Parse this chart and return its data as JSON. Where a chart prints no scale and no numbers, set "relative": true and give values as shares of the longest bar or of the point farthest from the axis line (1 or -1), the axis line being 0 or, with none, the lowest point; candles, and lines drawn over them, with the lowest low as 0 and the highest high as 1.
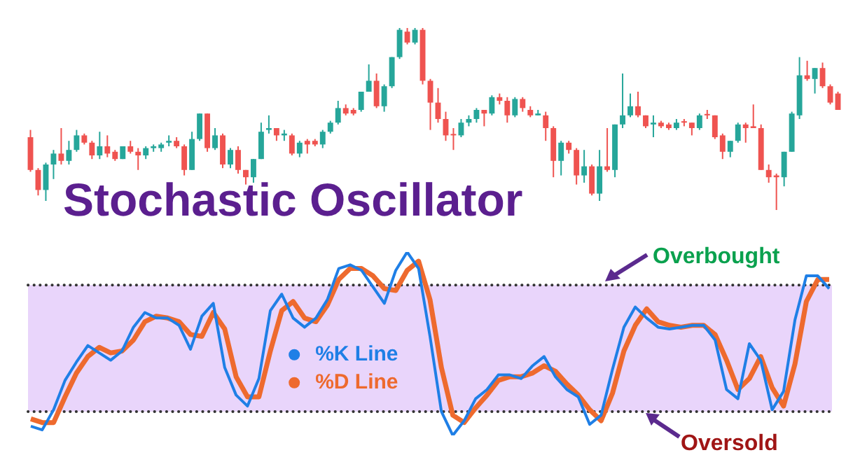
{
  "chart_data": [
    {
      "type": "candlestick",
      "title": "Stochastic Oscillator",
      "relative": true,
      "categories": [
        null,
        null,
        null,
        null,
        null,
        null,
        null,
        null,
        null,
        null,
        null,
        null,
        null,
        null,
        null,
        null,
        null,
        null,
        null,
        null,
        null,
        null,
        null,
        null,
        null,
        null,
        null,
        null,
        null,
        null,
        null,
        null,
        null,
        null,
        null,
        null,
        null,
        null,
        null,
        null,
        null,
        null,
        null,
        null,
        null,
        null,
        null,
        null,
        null,
        null,
        null,
        null,
        null,
        null,
        null,
        null,
        null,
        null,
        null,
        null,
        null,
        null,
        null,
        null,
        null,
        null,
        null,
        null,
        null,
        null,
        null,
        null,
        null,
        null,
        null,
        null,
        null,
        null,
        null,
        null,
        null,
        null,
        null,
        null,
        null,
        null,
        null,
        null,
        null,
        null,
        null,
        null,
        null,
        null,
        null,
        null,
        null,
        null,
        null,
        null,
        null,
        null,
        null,
        null,
        null,
        null
      ],
      "ohlc": [
        [
          0.4,
          0.44,
          0.21,
          0.22
        ],
        [
          0.22,
          0.23,
          0.08,
          0.11
        ],
        [
          0.11,
          0.26,
          0.05,
          0.25
        ],
        [
          0.25,
          0.33,
          0.17,
          0.31
        ],
        [
          0.31,
          0.45,
          0.25,
          0.27
        ],
        [
          0.27,
          0.38,
          0.25,
          0.33
        ],
        [
          0.33,
          0.44,
          0.32,
          0.41
        ],
        [
          0.41,
          0.42,
          0.36,
          0.37
        ],
        [
          0.37,
          0.38,
          0.28,
          0.3
        ],
        [
          0.3,
          0.43,
          0.28,
          0.35
        ],
        [
          0.35,
          0.41,
          0.29,
          0.31
        ],
        [
          0.32,
          0.33,
          0.27,
          0.28
        ],
        [
          0.28,
          0.35,
          0.28,
          0.35
        ],
        [
          0.35,
          0.38,
          0.31,
          0.32
        ],
        [
          0.32,
          0.34,
          0.22,
          0.3
        ],
        [
          0.3,
          0.35,
          0.28,
          0.34
        ],
        [
          0.34,
          0.36,
          0.32,
          0.35
        ],
        [
          0.34,
          0.37,
          0.32,
          0.36
        ],
        [
          0.37,
          0.41,
          0.35,
          0.38
        ],
        [
          0.38,
          0.4,
          0.34,
          0.35
        ],
        [
          0.35,
          0.36,
          0.19,
          0.22
        ],
        [
          0.22,
          0.43,
          0.22,
          0.39
        ],
        [
          0.39,
          0.53,
          0.38,
          0.53
        ],
        [
          0.53,
          0.53,
          0.32,
          0.34
        ],
        [
          0.34,
          0.45,
          0.33,
          0.41
        ],
        [
          0.41,
          0.42,
          0.23,
          0.25
        ],
        [
          0.25,
          0.34,
          0.23,
          0.33
        ],
        [
          0.33,
          0.35,
          0.2,
          0.22
        ],
        [
          0.22,
          0.22,
          0.14,
          0.18
        ],
        [
          0.18,
          0.28,
          0.15,
          0.28
        ],
        [
          0.28,
          0.48,
          0.28,
          0.43
        ],
        [
          0.44,
          0.52,
          0.42,
          0.45
        ],
        [
          0.45,
          0.45,
          0.38,
          0.41
        ],
        [
          0.41,
          0.44,
          0.38,
          0.42
        ],
        [
          0.41,
          0.42,
          0.3,
          0.31
        ],
        [
          0.31,
          0.38,
          0.29,
          0.37
        ],
        [
          0.38,
          0.39,
          0.31,
          0.36
        ],
        [
          0.38,
          0.39,
          0.35,
          0.36
        ],
        [
          0.36,
          0.44,
          0.34,
          0.43
        ],
        [
          0.43,
          0.49,
          0.42,
          0.48
        ],
        [
          0.48,
          0.6,
          0.47,
          0.56
        ],
        [
          0.56,
          0.58,
          0.52,
          0.53
        ],
        [
          0.55,
          0.56,
          0.52,
          0.53
        ],
        [
          0.55,
          0.65,
          0.54,
          0.65
        ],
        [
          0.65,
          0.8,
          0.65,
          0.71
        ],
        [
          0.71,
          0.75,
          0.56,
          0.57
        ],
        [
          0.57,
          0.69,
          0.54,
          0.68
        ],
        [
          0.68,
          0.84,
          0.67,
          0.84
        ],
        [
          0.84,
          1.0,
          0.83,
          0.99
        ],
        [
          0.98,
          1.0,
          0.91,
          0.92
        ],
        [
          0.92,
          1.0,
          0.91,
          0.99
        ],
        [
          0.99,
          1.0,
          0.69,
          0.71
        ],
        [
          0.71,
          0.72,
          0.44,
          0.59
        ],
        [
          0.59,
          0.67,
          0.48,
          0.5
        ],
        [
          0.5,
          0.54,
          0.38,
          0.41
        ],
        [
          0.41,
          0.45,
          0.33,
          0.41
        ],
        [
          0.41,
          0.5,
          0.4,
          0.48
        ],
        [
          0.48,
          0.52,
          0.46,
          0.5
        ],
        [
          0.5,
          0.56,
          0.48,
          0.55
        ],
        [
          0.55,
          0.55,
          0.46,
          0.53
        ],
        [
          0.53,
          0.63,
          0.52,
          0.62
        ],
        [
          0.62,
          0.64,
          0.58,
          0.6
        ],
        [
          0.6,
          0.62,
          0.48,
          0.52
        ],
        [
          0.52,
          0.62,
          0.51,
          0.61
        ],
        [
          0.61,
          0.62,
          0.54,
          0.56
        ],
        [
          0.55,
          0.57,
          0.51,
          0.52
        ],
        [
          0.52,
          0.55,
          0.52,
          0.53
        ],
        [
          0.52,
          0.54,
          0.38,
          0.45
        ],
        [
          0.45,
          0.46,
          0.18,
          0.27
        ],
        [
          0.27,
          0.38,
          0.19,
          0.37
        ],
        [
          0.37,
          0.38,
          0.31,
          0.33
        ],
        [
          0.33,
          0.34,
          0.14,
          0.19
        ],
        [
          0.19,
          0.33,
          0.15,
          0.24
        ],
        [
          0.24,
          0.25,
          0.08,
          0.09
        ],
        [
          0.09,
          0.33,
          0.05,
          0.24
        ],
        [
          0.24,
          0.45,
          0.21,
          0.22
        ],
        [
          0.22,
          0.47,
          0.18,
          0.47
        ],
        [
          0.47,
          0.75,
          0.45,
          0.52
        ],
        [
          0.52,
          0.64,
          0.51,
          0.57
        ],
        [
          0.57,
          0.65,
          0.51,
          0.52
        ],
        [
          0.52,
          0.52,
          0.45,
          0.46
        ],
        [
          0.47,
          0.52,
          0.4,
          0.48
        ],
        [
          0.48,
          0.49,
          0.45,
          0.46
        ],
        [
          0.47,
          0.48,
          0.44,
          0.45
        ],
        [
          0.45,
          0.5,
          0.44,
          0.48
        ],
        [
          0.48,
          0.5,
          0.46,
          0.48
        ],
        [
          0.48,
          0.48,
          0.41,
          0.45
        ],
        [
          0.45,
          0.53,
          0.44,
          0.52
        ],
        [
          0.52,
          0.55,
          0.5,
          0.52
        ],
        [
          0.52,
          0.52,
          0.39,
          0.4
        ],
        [
          0.41,
          0.42,
          0.28,
          0.32
        ],
        [
          0.32,
          0.38,
          0.29,
          0.38
        ],
        [
          0.38,
          0.48,
          0.37,
          0.47
        ],
        [
          0.47,
          0.48,
          0.37,
          0.45
        ],
        [
          0.46,
          0.58,
          0.45,
          0.45
        ],
        [
          0.45,
          0.47,
          0.22,
          0.22
        ],
        [
          0.22,
          0.25,
          0.15,
          0.18
        ],
        [
          0.19,
          0.2,
          0.0,
          0.18
        ],
        [
          0.18,
          0.32,
          0.13,
          0.32
        ],
        [
          0.32,
          0.54,
          0.32,
          0.53
        ],
        [
          0.52,
          0.84,
          0.5,
          0.74
        ],
        [
          0.74,
          0.82,
          0.71,
          0.72
        ],
        [
          0.72,
          0.78,
          0.64,
          0.78
        ],
        [
          0.78,
          0.81,
          0.67,
          0.68
        ],
        [
          0.68,
          0.69,
          0.58,
          0.59
        ],
        [
          0.64,
          0.65,
          0.55,
          0.55
        ]
      ],
      "colors": [
        "#ef5350",
        "#ef5350",
        "#26a69a",
        "#26a69a",
        "#ef5350",
        "#26a69a",
        "#26a69a",
        "#ef5350",
        "#ef5350",
        "#26a69a",
        "#ef5350",
        "#ef5350",
        "#26a69a",
        "#ef5350",
        "#ef5350",
        "#26a69a",
        "#26a69a",
        "#26a69a",
        "#26a69a",
        "#ef5350",
        "#ef5350",
        "#26a69a",
        "#26a69a",
        "#ef5350",
        "#26a69a",
        "#ef5350",
        "#26a69a",
        "#ef5350",
        "#ef5350",
        "#26a69a",
        "#26a69a",
        "#26a69a",
        "#ef5350",
        "#26a69a",
        "#ef5350",
        "#26a69a",
        "#ef5350",
        "#ef5350",
        "#26a69a",
        "#26a69a",
        "#26a69a",
        "#ef5350",
        "#ef5350",
        "#26a69a",
        "#26a69a",
        "#ef5350",
        "#26a69a",
        "#26a69a",
        "#26a69a",
        "#ef5350",
        "#26a69a",
        "#ef5350",
        "#ef5350",
        "#ef5350",
        "#ef5350",
        "#ef5350",
        "#26a69a",
        "#26a69a",
        "#26a69a",
        "#ef5350",
        "#26a69a",
        "#ef5350",
        "#ef5350",
        "#26a69a",
        "#ef5350",
        "#ef5350",
        "#26a69a",
        "#ef5350",
        "#ef5350",
        "#26a69a",
        "#ef5350",
        "#ef5350",
        "#26a69a",
        "#ef5350",
        "#26a69a",
        "#ef5350",
        "#26a69a",
        "#26a69a",
        "#26a69a",
        "#ef5350",
        "#ef5350",
        "#26a69a",
        "#ef5350",
        "#ef5350",
        "#26a69a",
        "#ef5350",
        "#ef5350",
        "#26a69a",
        "#ef5350",
        "#ef5350",
        "#ef5350",
        "#26a69a",
        "#26a69a",
        "#ef5350",
        "#ef5350",
        "#ef5350",
        "#ef5350",
        "#ef5350",
        "#26a69a",
        "#26a69a",
        "#26a69a",
        "#ef5350",
        "#26a69a",
        "#ef5350",
        "#ef5350",
        "#ef5350"
      ]
    },
    {
      "type": "line",
      "relative": true,
      "legend": "left",
      "categories": [
        null,
        null,
        null,
        null,
        null,
        null,
        null,
        null,
        null,
        null,
        null,
        null,
        null,
        null,
        null,
        null,
        null,
        null,
        null,
        null,
        null,
        null,
        null,
        null,
        null,
        null,
        null,
        null,
        null,
        null,
        null,
        null,
        null,
        null,
        null,
        null,
        null,
        null,
        null,
        null,
        null,
        null,
        null,
        null,
        null,
        null,
        null,
        null,
        null,
        null,
        null,
        null,
        null,
        null,
        null,
        null,
        null,
        null,
        null,
        null,
        null,
        null,
        null,
        null,
        null,
        null,
        null,
        null,
        null,
        null,
        null
      ],
      "series": [
        {
          "name": "%K Line",
          "color": "#1f7fe6",
          "values": [
            0.05,
            0.03,
            0.14,
            0.3,
            0.4,
            0.49,
            0.45,
            0.41,
            0.46,
            0.59,
            0.67,
            0.64,
            0.64,
            0.6,
            0.47,
            0.65,
            0.72,
            0.37,
            0.22,
            0.16,
            0.31,
            0.68,
            0.77,
            0.64,
            0.59,
            0.64,
            0.74,
            0.91,
            0.93,
            0.9,
            0.81,
            0.72,
            0.9,
            1.0,
            0.91,
            0.54,
            0.13,
            0,
            0.08,
            0.2,
            0.25,
            0.33,
            0.33,
            0.31,
            0.38,
            0.43,
            0.32,
            0.25,
            0.21,
            0.06,
            0.11,
            0.36,
            0.59,
            0.7,
            0.64,
            0.59,
            0.58,
            0.59,
            0.6,
            0.6,
            0.52,
            0.25,
            0.2,
            0.5,
            0.41,
            0.14,
            0.24,
            0.63,
            0.87,
            0.87,
            0.8
          ]
        },
        {
          "name": "%D Line",
          "color": "#ee6a2e",
          "values": [
            0.09,
            0.07,
            0.07,
            0.21,
            0.34,
            0.43,
            0.48,
            0.45,
            0.46,
            0.52,
            0.62,
            0.65,
            0.64,
            0.62,
            0.55,
            0.54,
            0.67,
            0.58,
            0.32,
            0.21,
            0.21,
            0.46,
            0.68,
            0.73,
            0.64,
            0.62,
            0.71,
            0.85,
            0.91,
            0.91,
            0.87,
            0.8,
            0.79,
            0.9,
            0.95,
            0.74,
            0.37,
            0.11,
            0.07,
            0.15,
            0.22,
            0.3,
            0.32,
            0.32,
            0.34,
            0.38,
            0.35,
            0.28,
            0.22,
            0.14,
            0.08,
            0.23,
            0.46,
            0.6,
            0.69,
            0.62,
            0.6,
            0.59,
            0.6,
            0.6,
            0.55,
            0.41,
            0.25,
            0.31,
            0.43,
            0.26,
            0.16,
            0.39,
            0.73,
            0.85,
            0.85
          ]
        }
      ],
      "bands": [
        {
          "axis": "y",
          "from": 0.13,
          "to": 0.82,
          "color": "#e9d5fb"
        }
      ],
      "ref_lines": [
        {
          "axis": "y",
          "value": 0.82,
          "label": "Overbought",
          "color": "#333333",
          "line_style": "dotted"
        },
        {
          "axis": "y",
          "value": 0.13,
          "label": "Oversold",
          "color": "#333333",
          "line_style": "dotted"
        }
      ]
    }
  ]
}
